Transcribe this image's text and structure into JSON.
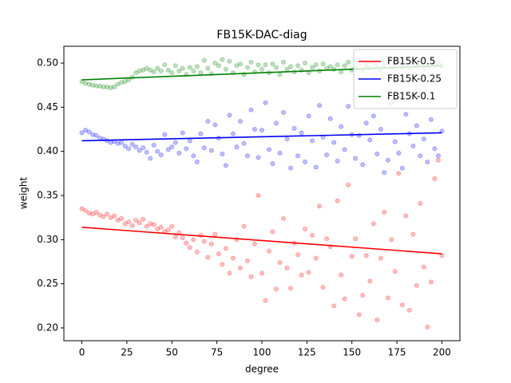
{
  "chart_data": {
    "type": "scatter",
    "title": "FB15K-DAC-diag",
    "xlabel": "degree",
    "ylabel": "weight",
    "xlim": [
      -10,
      210
    ],
    "xticks": [
      0,
      25,
      50,
      75,
      100,
      125,
      150,
      175,
      200
    ],
    "ylim": [
      0.1855,
      0.519
    ],
    "yticks": [
      {
        "value": 0.2,
        "label": "0.20"
      },
      0.25,
      {
        "value": 0.3,
        "label": "0.30"
      },
      0.35,
      {
        "value": 0.4,
        "label": "0.40"
      },
      0.45,
      {
        "value": 0.5,
        "label": "0.50"
      }
    ],
    "legend": "upper right",
    "x": [
      0,
      2,
      4,
      6,
      8,
      10,
      12,
      14,
      16,
      18,
      20,
      22,
      24,
      26,
      28,
      30,
      32,
      34,
      36,
      38,
      40,
      42,
      44,
      46,
      48,
      50,
      52,
      54,
      56,
      58,
      60,
      62,
      64,
      66,
      68,
      70,
      72,
      74,
      76,
      78,
      80,
      82,
      84,
      86,
      88,
      90,
      92,
      94,
      96,
      98,
      100,
      102,
      104,
      106,
      108,
      110,
      112,
      114,
      116,
      118,
      120,
      122,
      124,
      126,
      128,
      130,
      132,
      134,
      136,
      138,
      140,
      142,
      144,
      146,
      148,
      150,
      152,
      154,
      156,
      158,
      160,
      162,
      164,
      166,
      168,
      170,
      172,
      174,
      176,
      178,
      180,
      182,
      184,
      186,
      188,
      190,
      192,
      194,
      196,
      198,
      200
    ],
    "series": [
      {
        "name": "FB15K-0.5",
        "color": "#ff0000",
        "fit": [
          0.314,
          0.284
        ],
        "values": [
          0.335,
          0.333,
          0.33,
          0.329,
          0.331,
          0.328,
          0.326,
          0.329,
          0.325,
          0.327,
          0.322,
          0.324,
          0.318,
          0.32,
          0.316,
          0.322,
          0.319,
          0.323,
          0.315,
          0.318,
          0.317,
          0.312,
          0.314,
          0.309,
          0.311,
          0.315,
          0.303,
          0.308,
          0.302,
          0.296,
          0.291,
          0.3,
          0.286,
          0.305,
          0.298,
          0.28,
          0.295,
          0.306,
          0.284,
          0.272,
          0.29,
          0.262,
          0.279,
          0.3,
          0.268,
          0.315,
          0.276,
          0.258,
          0.295,
          0.35,
          0.262,
          0.231,
          0.287,
          0.309,
          0.244,
          0.274,
          0.324,
          0.268,
          0.245,
          0.296,
          0.283,
          0.26,
          0.312,
          0.263,
          0.305,
          0.279,
          0.338,
          0.246,
          0.301,
          0.292,
          0.225,
          0.344,
          0.26,
          0.233,
          0.362,
          0.281,
          0.301,
          0.215,
          0.237,
          0.282,
          0.253,
          0.318,
          0.209,
          0.279,
          0.331,
          0.234,
          0.3,
          0.264,
          0.375,
          0.226,
          0.327,
          0.22,
          0.306,
          0.248,
          0.341,
          0.269,
          0.201,
          0.252,
          0.369,
          0.39,
          0.282
        ]
      },
      {
        "name": "FB15K-0.25",
        "color": "#0000ff",
        "fit": [
          0.412,
          0.421
        ],
        "values": [
          0.421,
          0.424,
          0.422,
          0.419,
          0.418,
          0.415,
          0.414,
          0.412,
          0.41,
          0.411,
          0.409,
          0.41,
          0.406,
          0.403,
          0.408,
          0.405,
          0.401,
          0.404,
          0.399,
          0.392,
          0.407,
          0.4,
          0.396,
          0.419,
          0.402,
          0.405,
          0.41,
          0.398,
          0.421,
          0.403,
          0.412,
          0.395,
          0.388,
          0.42,
          0.404,
          0.434,
          0.401,
          0.43,
          0.415,
          0.397,
          0.384,
          0.441,
          0.42,
          0.405,
          0.434,
          0.409,
          0.395,
          0.447,
          0.425,
          0.393,
          0.424,
          0.455,
          0.402,
          0.386,
          0.432,
          0.398,
          0.444,
          0.414,
          0.381,
          0.426,
          0.395,
          0.421,
          0.388,
          0.44,
          0.412,
          0.382,
          0.452,
          0.416,
          0.396,
          0.437,
          0.41,
          0.389,
          0.428,
          0.402,
          0.451,
          0.419,
          0.392,
          0.418,
          0.385,
          0.432,
          0.413,
          0.44,
          0.397,
          0.425,
          0.376,
          0.39,
          0.455,
          0.411,
          0.398,
          0.381,
          0.442,
          0.42,
          0.406,
          0.429,
          0.395,
          0.414,
          0.388,
          0.436,
          0.403,
          0.395,
          0.423
        ]
      },
      {
        "name": "FB15K-0.1",
        "color": "#008000",
        "fit": [
          0.481,
          0.497
        ],
        "values": [
          0.479,
          0.477,
          0.476,
          0.475,
          0.474,
          0.474,
          0.473,
          0.473,
          0.472,
          0.473,
          0.476,
          0.478,
          0.479,
          0.481,
          0.484,
          0.489,
          0.491,
          0.492,
          0.494,
          0.492,
          0.49,
          0.494,
          0.491,
          0.498,
          0.492,
          0.489,
          0.497,
          0.491,
          0.494,
          0.487,
          0.495,
          0.491,
          0.496,
          0.489,
          0.503,
          0.494,
          0.488,
          0.5,
          0.497,
          0.504,
          0.493,
          0.502,
          0.489,
          0.497,
          0.499,
          0.487,
          0.495,
          0.501,
          0.49,
          0.498,
          0.493,
          0.498,
          0.489,
          0.499,
          0.495,
          0.487,
          0.501,
          0.493,
          0.496,
          0.49,
          0.497,
          0.492,
          0.5,
          0.489,
          0.495,
          0.498,
          0.491,
          0.499,
          0.494,
          0.496,
          0.493,
          0.498,
          0.49,
          0.497,
          0.501,
          0.492,
          0.495,
          0.499,
          0.491,
          0.497,
          0.494,
          0.5,
          0.496,
          0.492,
          0.498,
          0.503,
          0.493,
          0.497,
          0.5,
          0.495,
          0.498,
          0.494,
          0.501,
          0.496,
          0.499,
          0.493,
          0.497,
          0.502,
          0.498,
          0.5,
          0.497
        ]
      }
    ]
  }
}
